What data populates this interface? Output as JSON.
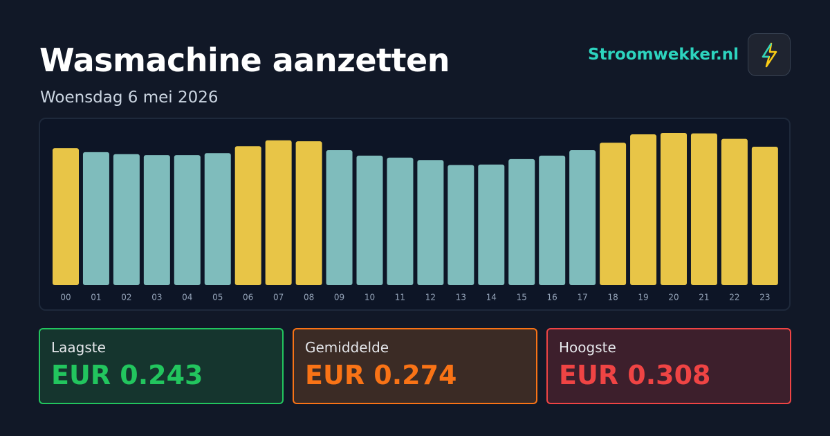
{
  "header": {
    "title": "Wasmachine aanzetten",
    "subtitle": "Woensdag 6 mei 2026",
    "brand": "Stroomwekker.nl"
  },
  "chart_data": {
    "type": "bar",
    "categories": [
      "00",
      "01",
      "02",
      "03",
      "04",
      "05",
      "06",
      "07",
      "08",
      "09",
      "10",
      "11",
      "12",
      "13",
      "14",
      "15",
      "16",
      "17",
      "18",
      "19",
      "20",
      "21",
      "22",
      "23"
    ],
    "values": [
      0.277,
      0.269,
      0.265,
      0.263,
      0.263,
      0.267,
      0.281,
      0.293,
      0.291,
      0.273,
      0.262,
      0.258,
      0.253,
      0.243,
      0.244,
      0.255,
      0.262,
      0.273,
      0.288,
      0.305,
      0.308,
      0.307,
      0.296,
      0.28
    ],
    "colors": [
      "#e8c547",
      "#7fbcbc",
      "#7fbcbc",
      "#7fbcbc",
      "#7fbcbc",
      "#7fbcbc",
      "#e8c547",
      "#e8c547",
      "#e8c547",
      "#7fbcbc",
      "#7fbcbc",
      "#7fbcbc",
      "#7fbcbc",
      "#7fbcbc",
      "#7fbcbc",
      "#7fbcbc",
      "#7fbcbc",
      "#7fbcbc",
      "#e8c547",
      "#e8c547",
      "#e8c547",
      "#e8c547",
      "#e8c547",
      "#e8c547"
    ]
  },
  "stats": [
    {
      "label": "Laagste",
      "value": "EUR 0.243"
    },
    {
      "label": "Gemiddelde",
      "value": "EUR 0.274"
    },
    {
      "label": "Hoogste",
      "value": "EUR 0.308"
    }
  ]
}
